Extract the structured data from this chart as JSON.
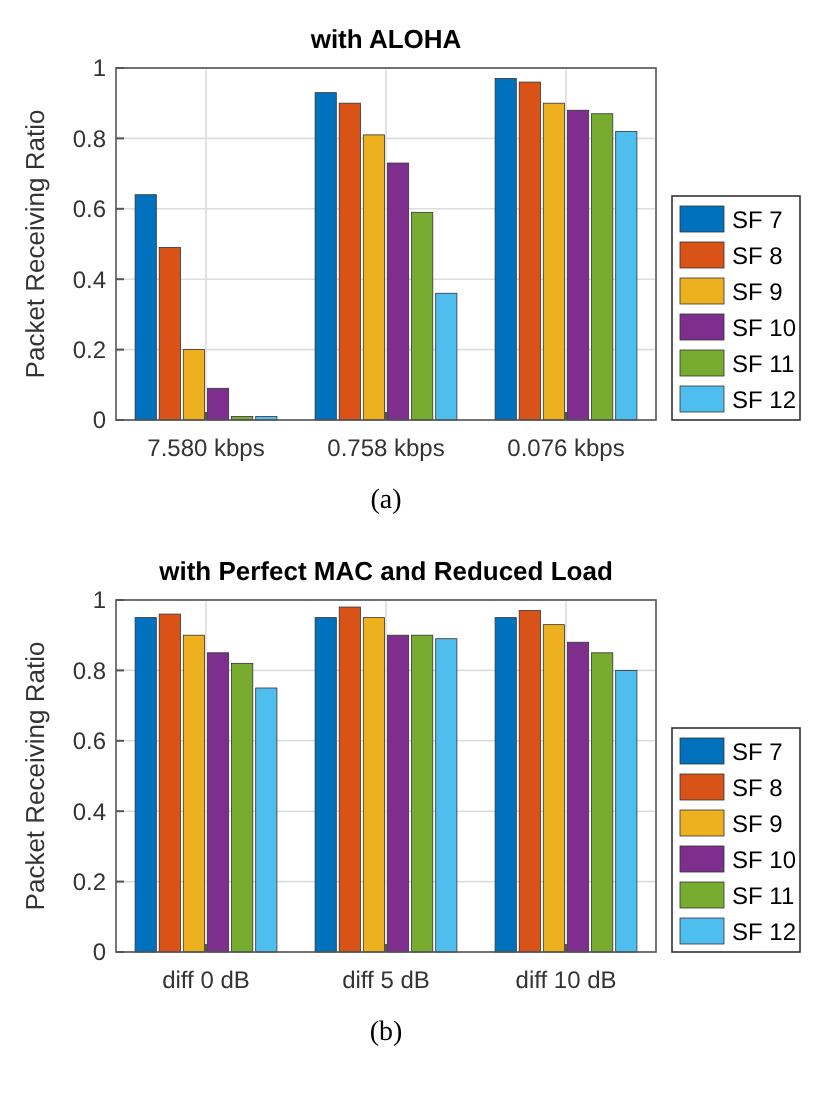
{
  "chart_data": [
    {
      "type": "bar",
      "title": "with ALOHA",
      "ylabel": "Packet Receiving Ratio",
      "categories": [
        "7.580 kbps",
        "0.758 kbps",
        "0.076 kbps"
      ],
      "series": [
        {
          "name": "SF 7",
          "color": "#0072bd",
          "values": [
            0.64,
            0.93,
            0.97
          ]
        },
        {
          "name": "SF 8",
          "color": "#d95319",
          "values": [
            0.49,
            0.9,
            0.96
          ]
        },
        {
          "name": "SF 9",
          "color": "#edb120",
          "values": [
            0.2,
            0.81,
            0.9
          ]
        },
        {
          "name": "SF 10",
          "color": "#7e2f8e",
          "values": [
            0.09,
            0.73,
            0.88
          ]
        },
        {
          "name": "SF 11",
          "color": "#77ac30",
          "values": [
            0.01,
            0.59,
            0.87
          ]
        },
        {
          "name": "SF 12",
          "color": "#4dbeee",
          "values": [
            0.01,
            0.36,
            0.82
          ]
        }
      ],
      "ylim": [
        0,
        1
      ],
      "yticks": [
        0,
        0.2,
        0.4,
        0.6,
        0.8,
        1
      ],
      "grid": true,
      "legend": "right",
      "annotations": [
        "(a)"
      ]
    },
    {
      "type": "bar",
      "title": "with Perfect MAC and Reduced Load",
      "ylabel": "Packet Receiving Ratio",
      "categories": [
        "diff 0 dB",
        "diff 5 dB",
        "diff 10 dB"
      ],
      "series": [
        {
          "name": "SF 7",
          "color": "#0072bd",
          "values": [
            0.95,
            0.95,
            0.95
          ]
        },
        {
          "name": "SF 8",
          "color": "#d95319",
          "values": [
            0.96,
            0.98,
            0.97
          ]
        },
        {
          "name": "SF 9",
          "color": "#edb120",
          "values": [
            0.9,
            0.95,
            0.93
          ]
        },
        {
          "name": "SF 10",
          "color": "#7e2f8e",
          "values": [
            0.85,
            0.9,
            0.88
          ]
        },
        {
          "name": "SF 11",
          "color": "#77ac30",
          "values": [
            0.82,
            0.9,
            0.85
          ]
        },
        {
          "name": "SF 12",
          "color": "#4dbeee",
          "values": [
            0.75,
            0.89,
            0.8
          ]
        }
      ],
      "ylim": [
        0,
        1
      ],
      "yticks": [
        0,
        0.2,
        0.4,
        0.6,
        0.8,
        1
      ],
      "grid": true,
      "legend": "right",
      "annotations": [
        "(b)"
      ]
    }
  ]
}
